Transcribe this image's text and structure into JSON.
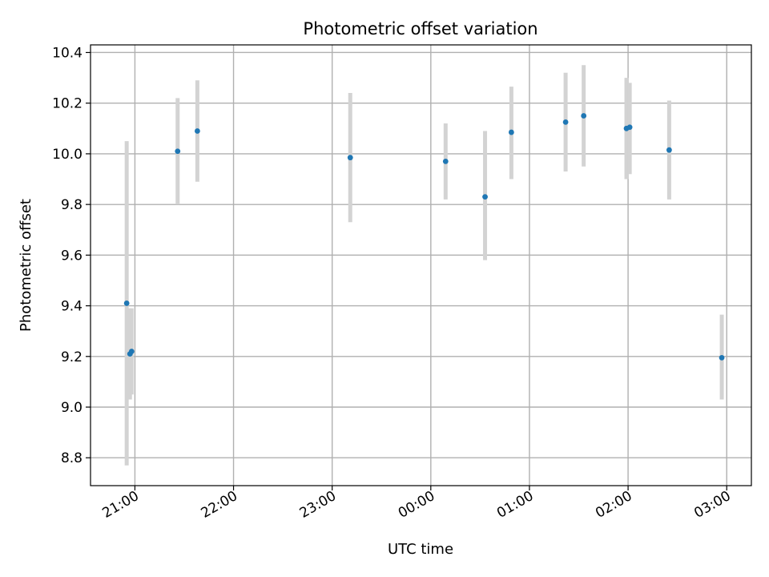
{
  "chart_data": {
    "type": "scatter",
    "title": "Photometric offset variation",
    "xlabel": "UTC time",
    "ylabel": "Photometric offset",
    "x_unit": "UTC datetime",
    "xlim": [
      "2023-01-01T20:33",
      "2023-01-02T03:15"
    ],
    "ylim": [
      8.69,
      10.43
    ],
    "grid": true,
    "x_ticks": [
      {
        "t": "2023-01-01T21:00",
        "label": "21:00"
      },
      {
        "t": "2023-01-01T22:00",
        "label": "22:00"
      },
      {
        "t": "2023-01-01T23:00",
        "label": "23:00"
      },
      {
        "t": "2023-01-02T00:00",
        "label": "00:00"
      },
      {
        "t": "2023-01-02T01:00",
        "label": "01:00"
      },
      {
        "t": "2023-01-02T02:00",
        "label": "02:00"
      },
      {
        "t": "2023-01-02T03:00",
        "label": "03:00"
      }
    ],
    "y_ticks": [
      {
        "v": 8.8,
        "label": "8.8"
      },
      {
        "v": 9.0,
        "label": "9.0"
      },
      {
        "v": 9.2,
        "label": "9.2"
      },
      {
        "v": 9.4,
        "label": "9.4"
      },
      {
        "v": 9.6,
        "label": "9.6"
      },
      {
        "v": 9.8,
        "label": "9.8"
      },
      {
        "v": 10.0,
        "label": "10.0"
      },
      {
        "v": 10.2,
        "label": "10.2"
      },
      {
        "v": 10.4,
        "label": "10.4"
      }
    ],
    "points": [
      {
        "t": "2023-01-01T20:55",
        "y": 9.41,
        "lo": 8.77,
        "hi": 10.05
      },
      {
        "t": "2023-01-01T20:57",
        "y": 9.21,
        "lo": 9.03,
        "hi": 9.39
      },
      {
        "t": "2023-01-01T20:58",
        "y": 9.22,
        "lo": 9.05,
        "hi": 9.39
      },
      {
        "t": "2023-01-01T21:26",
        "y": 10.01,
        "lo": 9.8,
        "hi": 10.22
      },
      {
        "t": "2023-01-01T21:38",
        "y": 10.09,
        "lo": 9.89,
        "hi": 10.29
      },
      {
        "t": "2023-01-01T23:11",
        "y": 9.985,
        "lo": 9.73,
        "hi": 10.24
      },
      {
        "t": "2023-01-02T00:09",
        "y": 9.97,
        "lo": 9.82,
        "hi": 10.12
      },
      {
        "t": "2023-01-02T00:33",
        "y": 9.83,
        "lo": 9.58,
        "hi": 10.09
      },
      {
        "t": "2023-01-02T00:49",
        "y": 10.085,
        "lo": 9.9,
        "hi": 10.265
      },
      {
        "t": "2023-01-02T01:22",
        "y": 10.125,
        "lo": 9.93,
        "hi": 10.32
      },
      {
        "t": "2023-01-02T01:33",
        "y": 10.15,
        "lo": 9.95,
        "hi": 10.35
      },
      {
        "t": "2023-01-02T01:59",
        "y": 10.1,
        "lo": 9.9,
        "hi": 10.3
      },
      {
        "t": "2023-01-02T02:01",
        "y": 10.105,
        "lo": 9.92,
        "hi": 10.28
      },
      {
        "t": "2023-01-02T02:25",
        "y": 10.015,
        "lo": 9.82,
        "hi": 10.21
      },
      {
        "t": "2023-01-02T02:57",
        "y": 9.195,
        "lo": 9.03,
        "hi": 9.365
      }
    ],
    "colors": {
      "point": "#1f77b4",
      "errorbar": "#d3d3d3",
      "grid": "#b0b0b0",
      "axes": "#000000"
    }
  }
}
